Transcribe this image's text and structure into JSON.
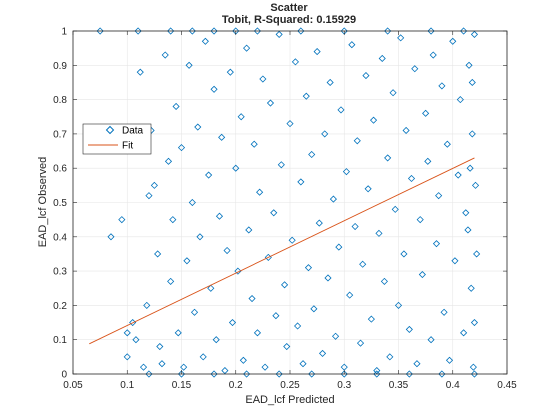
{
  "chart_data": {
    "type": "scatter",
    "title": "Scatter",
    "subtitle": "Tobit, R-Squared: 0.15929",
    "xlabel": "EAD_lcf Predicted",
    "ylabel": "EAD_lcf Observed",
    "xlim": [
      0.05,
      0.45
    ],
    "ylim": [
      0,
      1
    ],
    "xticks": [
      "0.05",
      "0.1",
      "0.15",
      "0.2",
      "0.25",
      "0.3",
      "0.35",
      "0.4",
      "0.45"
    ],
    "yticks": [
      "0",
      "0.1",
      "0.2",
      "0.3",
      "0.4",
      "0.5",
      "0.6",
      "0.7",
      "0.8",
      "0.9",
      "1"
    ],
    "grid": true,
    "legend_position": "upper-left",
    "series": [
      {
        "name": "Data",
        "marker": "diamond",
        "color": "#0072bd",
        "points": [
          [
            0.075,
            1.0
          ],
          [
            0.085,
            0.4
          ],
          [
            0.095,
            0.45
          ],
          [
            0.1,
            0.12
          ],
          [
            0.1,
            0.05
          ],
          [
            0.105,
            0.15
          ],
          [
            0.108,
            0.1
          ],
          [
            0.11,
            1.0
          ],
          [
            0.112,
            0.88
          ],
          [
            0.115,
            0.02
          ],
          [
            0.118,
            0.2
          ],
          [
            0.12,
            0.52
          ],
          [
            0.122,
            0.71
          ],
          [
            0.125,
            0.55
          ],
          [
            0.128,
            0.35
          ],
          [
            0.13,
            0.08
          ],
          [
            0.132,
            0.03
          ],
          [
            0.135,
            0.93
          ],
          [
            0.138,
            0.62
          ],
          [
            0.14,
            0.27
          ],
          [
            0.142,
            0.45
          ],
          [
            0.145,
            0.78
          ],
          [
            0.147,
            0.12
          ],
          [
            0.15,
            0.66
          ],
          [
            0.152,
            0.02
          ],
          [
            0.155,
            0.33
          ],
          [
            0.157,
            0.9
          ],
          [
            0.16,
            0.5
          ],
          [
            0.162,
            0.18
          ],
          [
            0.165,
            0.72
          ],
          [
            0.167,
            0.4
          ],
          [
            0.17,
            0.05
          ],
          [
            0.172,
            0.97
          ],
          [
            0.175,
            0.58
          ],
          [
            0.177,
            0.25
          ],
          [
            0.18,
            0.83
          ],
          [
            0.182,
            0.1
          ],
          [
            0.185,
            0.46
          ],
          [
            0.187,
            0.69
          ],
          [
            0.19,
            0.01
          ],
          [
            0.192,
            0.36
          ],
          [
            0.195,
            0.88
          ],
          [
            0.197,
            0.15
          ],
          [
            0.2,
            0.6
          ],
          [
            0.202,
            0.3
          ],
          [
            0.205,
            0.75
          ],
          [
            0.207,
            0.04
          ],
          [
            0.21,
            0.95
          ],
          [
            0.212,
            0.42
          ],
          [
            0.215,
            0.22
          ],
          [
            0.217,
            0.67
          ],
          [
            0.22,
            0.12
          ],
          [
            0.222,
            0.53
          ],
          [
            0.225,
            0.86
          ],
          [
            0.227,
            0.02
          ],
          [
            0.23,
            0.34
          ],
          [
            0.232,
            0.79
          ],
          [
            0.235,
            0.47
          ],
          [
            0.237,
            0.17
          ],
          [
            0.24,
            0.99
          ],
          [
            0.242,
            0.61
          ],
          [
            0.245,
            0.26
          ],
          [
            0.247,
            0.08
          ],
          [
            0.25,
            0.73
          ],
          [
            0.252,
            0.39
          ],
          [
            0.255,
            0.91
          ],
          [
            0.257,
            0.14
          ],
          [
            0.26,
            0.56
          ],
          [
            0.262,
            0.03
          ],
          [
            0.265,
            0.81
          ],
          [
            0.267,
            0.31
          ],
          [
            0.27,
            0.64
          ],
          [
            0.272,
            0.19
          ],
          [
            0.275,
            0.94
          ],
          [
            0.277,
            0.44
          ],
          [
            0.28,
            0.06
          ],
          [
            0.282,
            0.7
          ],
          [
            0.285,
            0.28
          ],
          [
            0.287,
            0.85
          ],
          [
            0.29,
            0.51
          ],
          [
            0.292,
            0.11
          ],
          [
            0.295,
            0.37
          ],
          [
            0.297,
            0.77
          ],
          [
            0.3,
            0.02
          ],
          [
            0.302,
            0.59
          ],
          [
            0.305,
            0.23
          ],
          [
            0.307,
            0.96
          ],
          [
            0.31,
            0.43
          ],
          [
            0.312,
            0.68
          ],
          [
            0.315,
            0.09
          ],
          [
            0.317,
            0.32
          ],
          [
            0.32,
            0.87
          ],
          [
            0.322,
            0.54
          ],
          [
            0.325,
            0.16
          ],
          [
            0.327,
            0.74
          ],
          [
            0.33,
            0.01
          ],
          [
            0.332,
            0.41
          ],
          [
            0.335,
            0.92
          ],
          [
            0.337,
            0.27
          ],
          [
            0.34,
            0.63
          ],
          [
            0.342,
            0.05
          ],
          [
            0.345,
            0.82
          ],
          [
            0.347,
            0.48
          ],
          [
            0.35,
            0.2
          ],
          [
            0.352,
            0.98
          ],
          [
            0.355,
            0.35
          ],
          [
            0.357,
            0.71
          ],
          [
            0.36,
            0.13
          ],
          [
            0.362,
            0.57
          ],
          [
            0.365,
            0.89
          ],
          [
            0.367,
            0.03
          ],
          [
            0.37,
            0.45
          ],
          [
            0.372,
            0.29
          ],
          [
            0.375,
            0.76
          ],
          [
            0.377,
            0.62
          ],
          [
            0.38,
            0.1
          ],
          [
            0.382,
            0.93
          ],
          [
            0.385,
            0.38
          ],
          [
            0.387,
            0.52
          ],
          [
            0.39,
            0.84
          ],
          [
            0.392,
            0.18
          ],
          [
            0.395,
            0.67
          ],
          [
            0.397,
            0.04
          ],
          [
            0.4,
            0.97
          ],
          [
            0.402,
            0.33
          ],
          [
            0.405,
            0.58
          ],
          [
            0.407,
            0.8
          ],
          [
            0.41,
            0.12
          ],
          [
            0.412,
            0.47
          ],
          [
            0.415,
            0.9
          ],
          [
            0.417,
            0.25
          ],
          [
            0.418,
            0.7
          ],
          [
            0.419,
            0.02
          ],
          [
            0.42,
            0.99
          ],
          [
            0.421,
            0.55
          ],
          [
            0.422,
            0.35
          ],
          [
            0.42,
            0.15
          ],
          [
            0.418,
            0.85
          ],
          [
            0.416,
            0.6
          ],
          [
            0.414,
            0.42
          ],
          [
            0.14,
            1.0
          ],
          [
            0.16,
            1.0
          ],
          [
            0.18,
            1.0
          ],
          [
            0.2,
            1.0
          ],
          [
            0.22,
            1.0
          ],
          [
            0.26,
            1.0
          ],
          [
            0.3,
            1.0
          ],
          [
            0.34,
            1.0
          ],
          [
            0.38,
            1.0
          ],
          [
            0.41,
            1.0
          ],
          [
            0.12,
            0.0
          ],
          [
            0.15,
            0.0
          ],
          [
            0.18,
            0.0
          ],
          [
            0.21,
            0.0
          ],
          [
            0.24,
            0.0
          ],
          [
            0.27,
            0.0
          ],
          [
            0.3,
            0.0
          ],
          [
            0.33,
            0.0
          ],
          [
            0.36,
            0.0
          ],
          [
            0.39,
            0.0
          ],
          [
            0.42,
            0.0
          ]
        ]
      },
      {
        "name": "Fit",
        "type": "line",
        "color": "#d95319",
        "x": [
          0.065,
          0.42
        ],
        "y": [
          0.088,
          0.63
        ]
      }
    ]
  }
}
